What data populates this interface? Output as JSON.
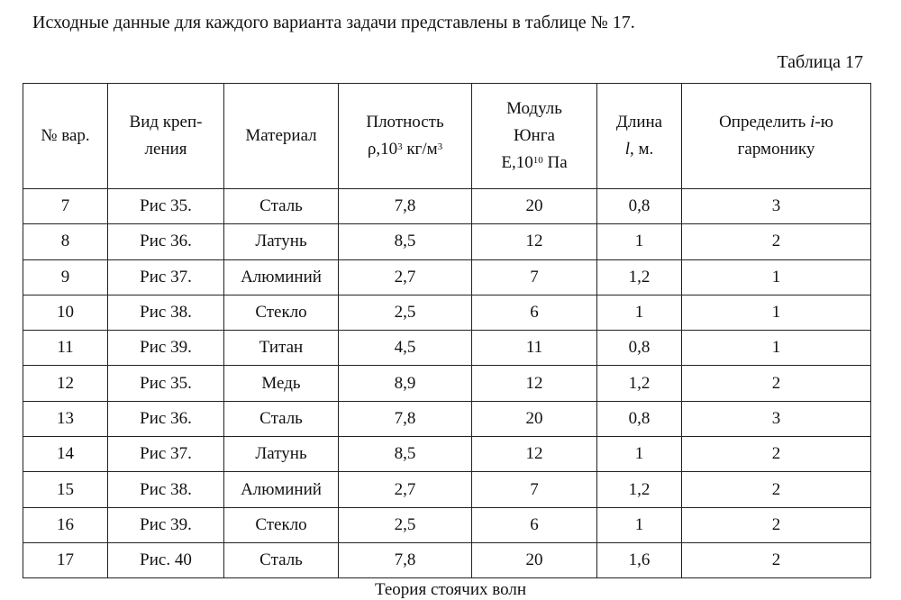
{
  "intro": "Исходные данные для каждого варианта задачи представлены в таблице № 17.",
  "caption": "Таблица 17",
  "headers": {
    "variant": "№ вар.",
    "mount_1": "Вид креп-",
    "mount_2": "ления",
    "material": "Материал",
    "density_1": "Плотность",
    "density_2": "ρ,10",
    "density_exp": "3",
    "density_3": " кг/м",
    "density_exp2": "3",
    "young_1": "Модуль",
    "young_2": "Юнга",
    "young_3": "E,10",
    "young_exp": "10",
    "young_4": " Па",
    "length_1": "Длина",
    "length_var": "l",
    "length_2": ", м.",
    "harm_1": "Определить ",
    "harm_var": "i",
    "harm_2": "-ю",
    "harm_3": "гармонику"
  },
  "rows": [
    [
      "7",
      "Рис 35.",
      "Сталь",
      "7,8",
      "20",
      "0,8",
      "3"
    ],
    [
      "8",
      "Рис 36.",
      "Латунь",
      "8,5",
      "12",
      "1",
      "2"
    ],
    [
      "9",
      "Рис 37.",
      "Алюминий",
      "2,7",
      "7",
      "1,2",
      "1"
    ],
    [
      "10",
      "Рис 38.",
      "Стекло",
      "2,5",
      "6",
      "1",
      "1"
    ],
    [
      "11",
      "Рис 39.",
      "Титан",
      "4,5",
      "11",
      "0,8",
      "1"
    ],
    [
      "12",
      "Рис 35.",
      "Медь",
      "8,9",
      "12",
      "1,2",
      "2"
    ],
    [
      "13",
      "Рис 36.",
      "Сталь",
      "7,8",
      "20",
      "0,8",
      "3"
    ],
    [
      "14",
      "Рис 37.",
      "Латунь",
      "8,5",
      "12",
      "1",
      "2"
    ],
    [
      "15",
      "Рис 38.",
      "Алюминий",
      "2,7",
      "7",
      "1,2",
      "2"
    ],
    [
      "16",
      "Рис 39.",
      "Стекло",
      "2,5",
      "6",
      "1",
      "2"
    ],
    [
      "17",
      "Рис. 40",
      "Сталь",
      "7,8",
      "20",
      "1,6",
      "2"
    ]
  ],
  "footer": "Теория стоячих волн"
}
